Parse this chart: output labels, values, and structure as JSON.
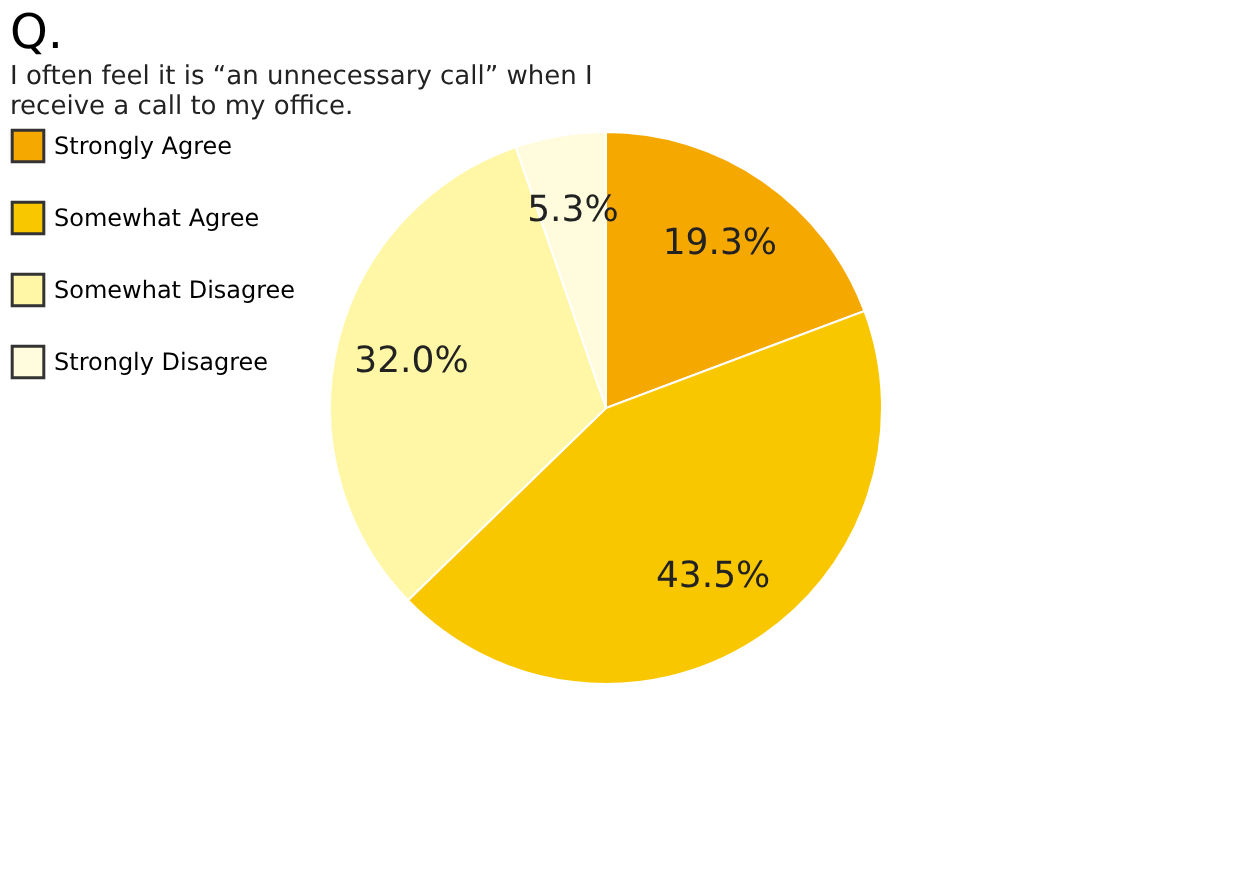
{
  "chart_data": {
    "type": "pie",
    "title": "Q.",
    "subtitle": "I often feel it is “an unnecessary call” when I receive a call to my office.",
    "categories": [
      "Strongly Agree",
      "Somewhat Agree",
      "Somewhat Disagree",
      "Strongly Disagree"
    ],
    "values": [
      19.3,
      43.5,
      32.0,
      5.3
    ],
    "colors": [
      "#f5a800",
      "#f9c700",
      "#fff7a6",
      "#fffbdc"
    ],
    "value_labels": [
      "19.3%",
      "43.5%",
      "32.0%",
      "5.3%"
    ],
    "legend": "left"
  }
}
